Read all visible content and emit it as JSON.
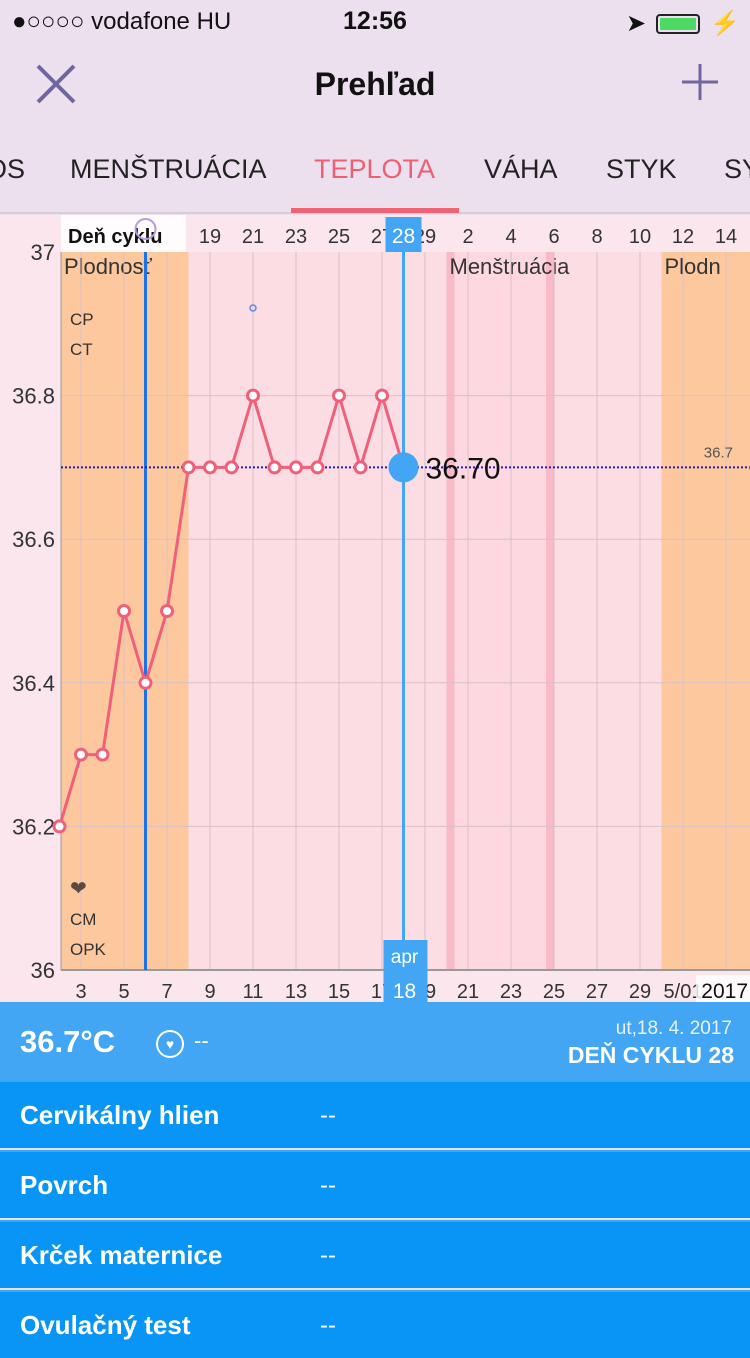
{
  "status_bar": {
    "carrier": "●○○○○ vodafone HU",
    "time": "12:56"
  },
  "nav": {
    "title": "Prehľad"
  },
  "tabs": [
    {
      "label": "OS"
    },
    {
      "label": "MENŠTRUÁCIA"
    },
    {
      "label": "TEPLOTA",
      "active": true
    },
    {
      "label": "VÁHA"
    },
    {
      "label": "STYK"
    },
    {
      "label": "SY"
    }
  ],
  "colors": {
    "accent": "#ee5f73",
    "line": "#f0607a",
    "fertile": "#fec89e",
    "selection": "#42a6f5",
    "ovulation_line": "#1a73e8",
    "list_bg": "#0995f5"
  },
  "chart_data": {
    "type": "line",
    "x": [
      2,
      3,
      4,
      5,
      6,
      7,
      8,
      9,
      10,
      11,
      12,
      13,
      14,
      15,
      16,
      17,
      18
    ],
    "y": [
      36.2,
      36.3,
      36.3,
      36.5,
      36.4,
      36.5,
      36.7,
      36.7,
      36.7,
      36.8,
      36.7,
      36.7,
      36.7,
      36.8,
      36.7,
      36.8,
      36.7
    ],
    "ylim": [
      36,
      37
    ],
    "y_ticks": [
      "37",
      "36.8",
      "36.6",
      "36.4",
      "36.2",
      "36"
    ],
    "top_axis_title": "Deň cyklu",
    "top_ticks": [
      {
        "label": "19",
        "day": 9
      },
      {
        "label": "21",
        "day": 11
      },
      {
        "label": "23",
        "day": 13
      },
      {
        "label": "25",
        "day": 15
      },
      {
        "label": "27",
        "day": 17
      },
      {
        "label": "29",
        "day": 19
      },
      {
        "label": "2",
        "day": 21
      },
      {
        "label": "4",
        "day": 23
      },
      {
        "label": "6",
        "day": 25
      },
      {
        "label": "8",
        "day": 27
      },
      {
        "label": "10",
        "day": 29
      },
      {
        "label": "12",
        "day": 31
      },
      {
        "label": "14",
        "day": 33
      }
    ],
    "bottom_ticks": [
      {
        "label": "3",
        "day": 3
      },
      {
        "label": "5",
        "day": 5
      },
      {
        "label": "7",
        "day": 7
      },
      {
        "label": "9",
        "day": 9
      },
      {
        "label": "11",
        "day": 11
      },
      {
        "label": "13",
        "day": 13
      },
      {
        "label": "15",
        "day": 15
      },
      {
        "label": "17",
        "day": 17
      },
      {
        "label": "19",
        "day": 19
      },
      {
        "label": "21",
        "day": 21
      },
      {
        "label": "23",
        "day": 23
      },
      {
        "label": "25",
        "day": 25
      },
      {
        "label": "27",
        "day": 27
      },
      {
        "label": "29",
        "day": 29
      },
      {
        "label": "5/01",
        "day": 31
      }
    ],
    "year_label": "2017",
    "selected": {
      "day": 18,
      "value": 36.7,
      "value_label": "36.70",
      "cycle_day": "28",
      "month": "apr",
      "date": "18"
    },
    "reference_line": {
      "value": 36.7,
      "label": "36.7"
    },
    "ovulation_day": 6,
    "bands": [
      {
        "type": "fertile",
        "label": "Plodnosť",
        "from": 2,
        "to": 8
      },
      {
        "type": "menstruation",
        "label": "Menštruácia",
        "from": 20,
        "to": 25
      },
      {
        "type": "fertile",
        "label": "Plodn",
        "from": 30,
        "to": 36
      }
    ],
    "row_labels": [
      "CP",
      "CT",
      "CM",
      "OPK"
    ]
  },
  "summary": {
    "temperature": "36.7°C",
    "heart_value": "--",
    "date": "ut,18. 4. 2017",
    "cycle_day": "DEŇ CYKLU 28"
  },
  "details": [
    {
      "label": "Cervikálny hlien",
      "value": "--"
    },
    {
      "label": "Povrch",
      "value": "--"
    },
    {
      "label": "Krček maternice",
      "value": "--"
    },
    {
      "label": "Ovulačný test",
      "value": "--"
    }
  ]
}
